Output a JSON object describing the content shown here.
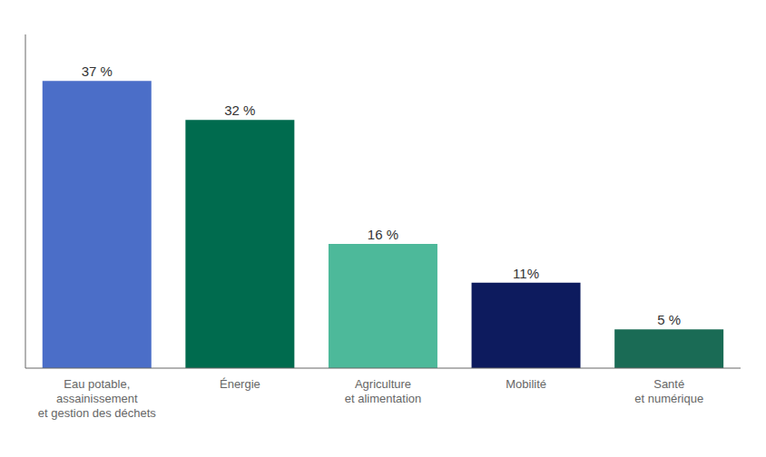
{
  "chart_data": {
    "type": "bar",
    "categories": [
      "Eau potable,\nassainissement\net gestion des déchets",
      "Énergie",
      "Agriculture\net alimentation",
      "Mobilité",
      "Santé\net numérique"
    ],
    "values": [
      37,
      32,
      16,
      11,
      5
    ],
    "value_labels": [
      "37 %",
      "32 %",
      "16 %",
      "11%",
      "5 %"
    ],
    "data_labels": true,
    "colors": [
      "#4B6EC8",
      "#006B4E",
      "#4DB99A",
      "#0D1B5E",
      "#1A6B55"
    ],
    "ylim": [
      0,
      43
    ],
    "grid": false,
    "tick_labels": "x"
  }
}
